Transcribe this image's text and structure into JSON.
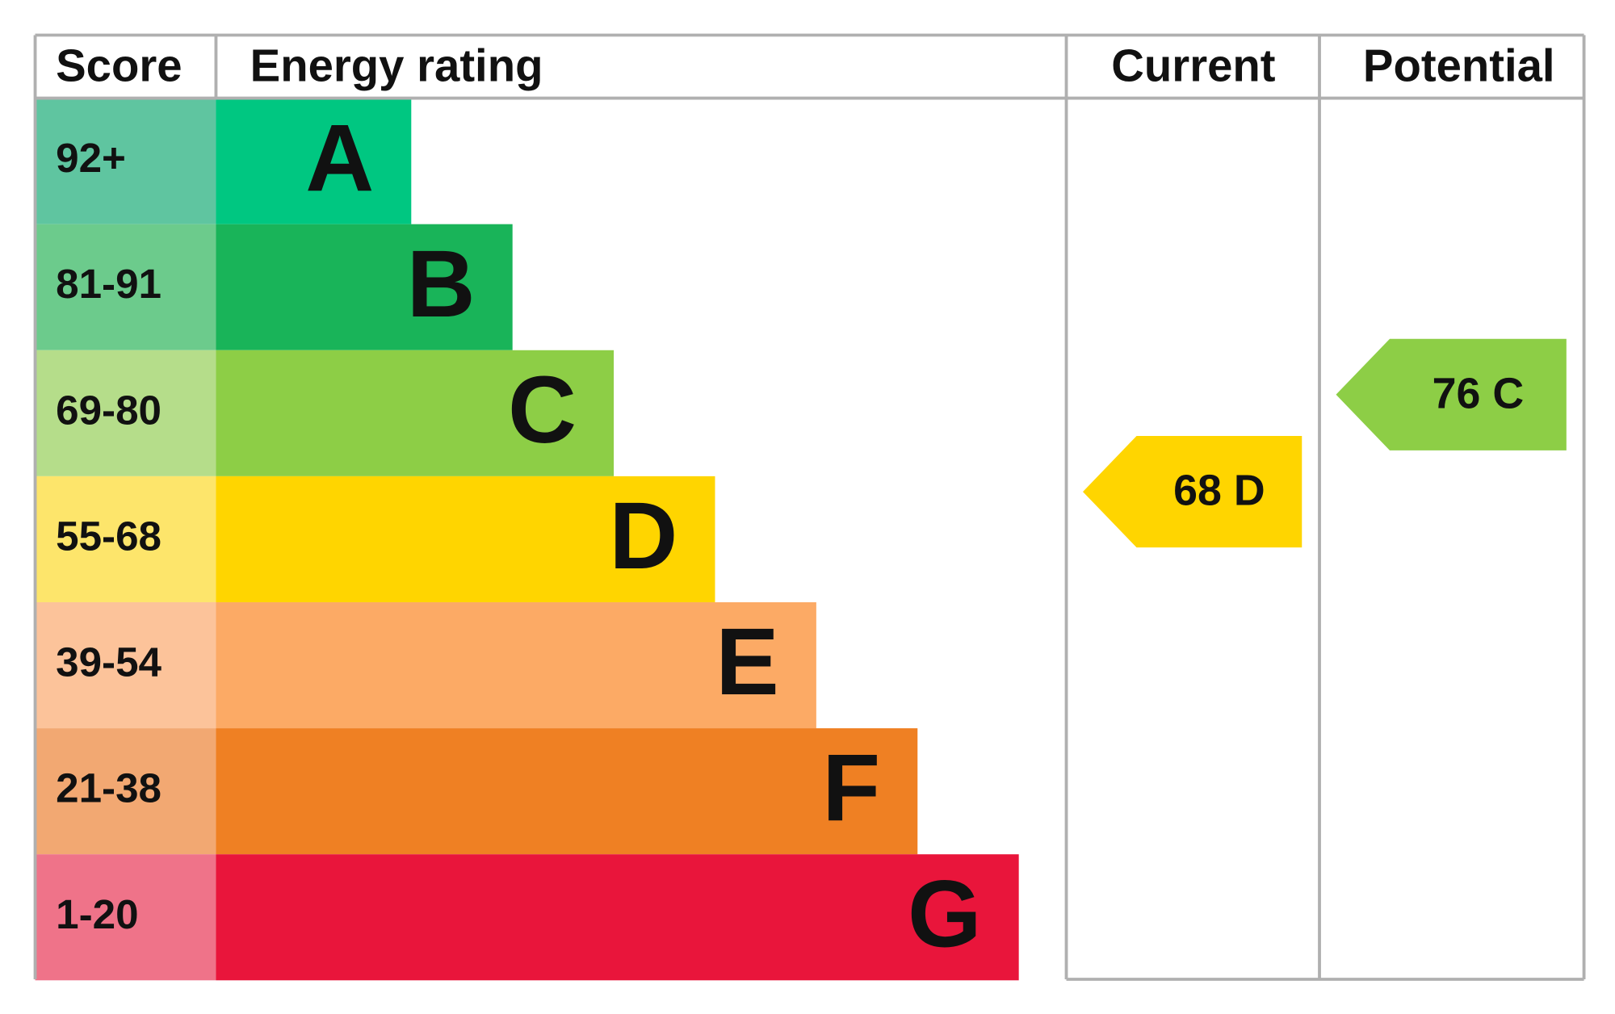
{
  "header": {
    "score": "Score",
    "rating": "Energy rating",
    "current": "Current",
    "potential": "Potential"
  },
  "bands": [
    {
      "score": "92+",
      "letter": "A",
      "color": "#00c781",
      "score_color": "#5fc5a0"
    },
    {
      "score": "81-91",
      "letter": "B",
      "color": "#19b459",
      "score_color": "#6ccb8c"
    },
    {
      "score": "69-80",
      "letter": "C",
      "color": "#8dce46",
      "score_color": "#b5dd8a"
    },
    {
      "score": "55-68",
      "letter": "D",
      "color": "#ffd500",
      "score_color": "#fde56b"
    },
    {
      "score": "39-54",
      "letter": "E",
      "color": "#fcaa65",
      "score_color": "#fcc39a"
    },
    {
      "score": "21-38",
      "letter": "F",
      "color": "#ef8023",
      "score_color": "#f2a872"
    },
    {
      "score": "1-20",
      "letter": "G",
      "color": "#e9153b",
      "score_color": "#ef7389"
    }
  ],
  "current": {
    "score": 68,
    "rating": "D"
  },
  "potential": {
    "score": 76,
    "rating": "C"
  }
}
